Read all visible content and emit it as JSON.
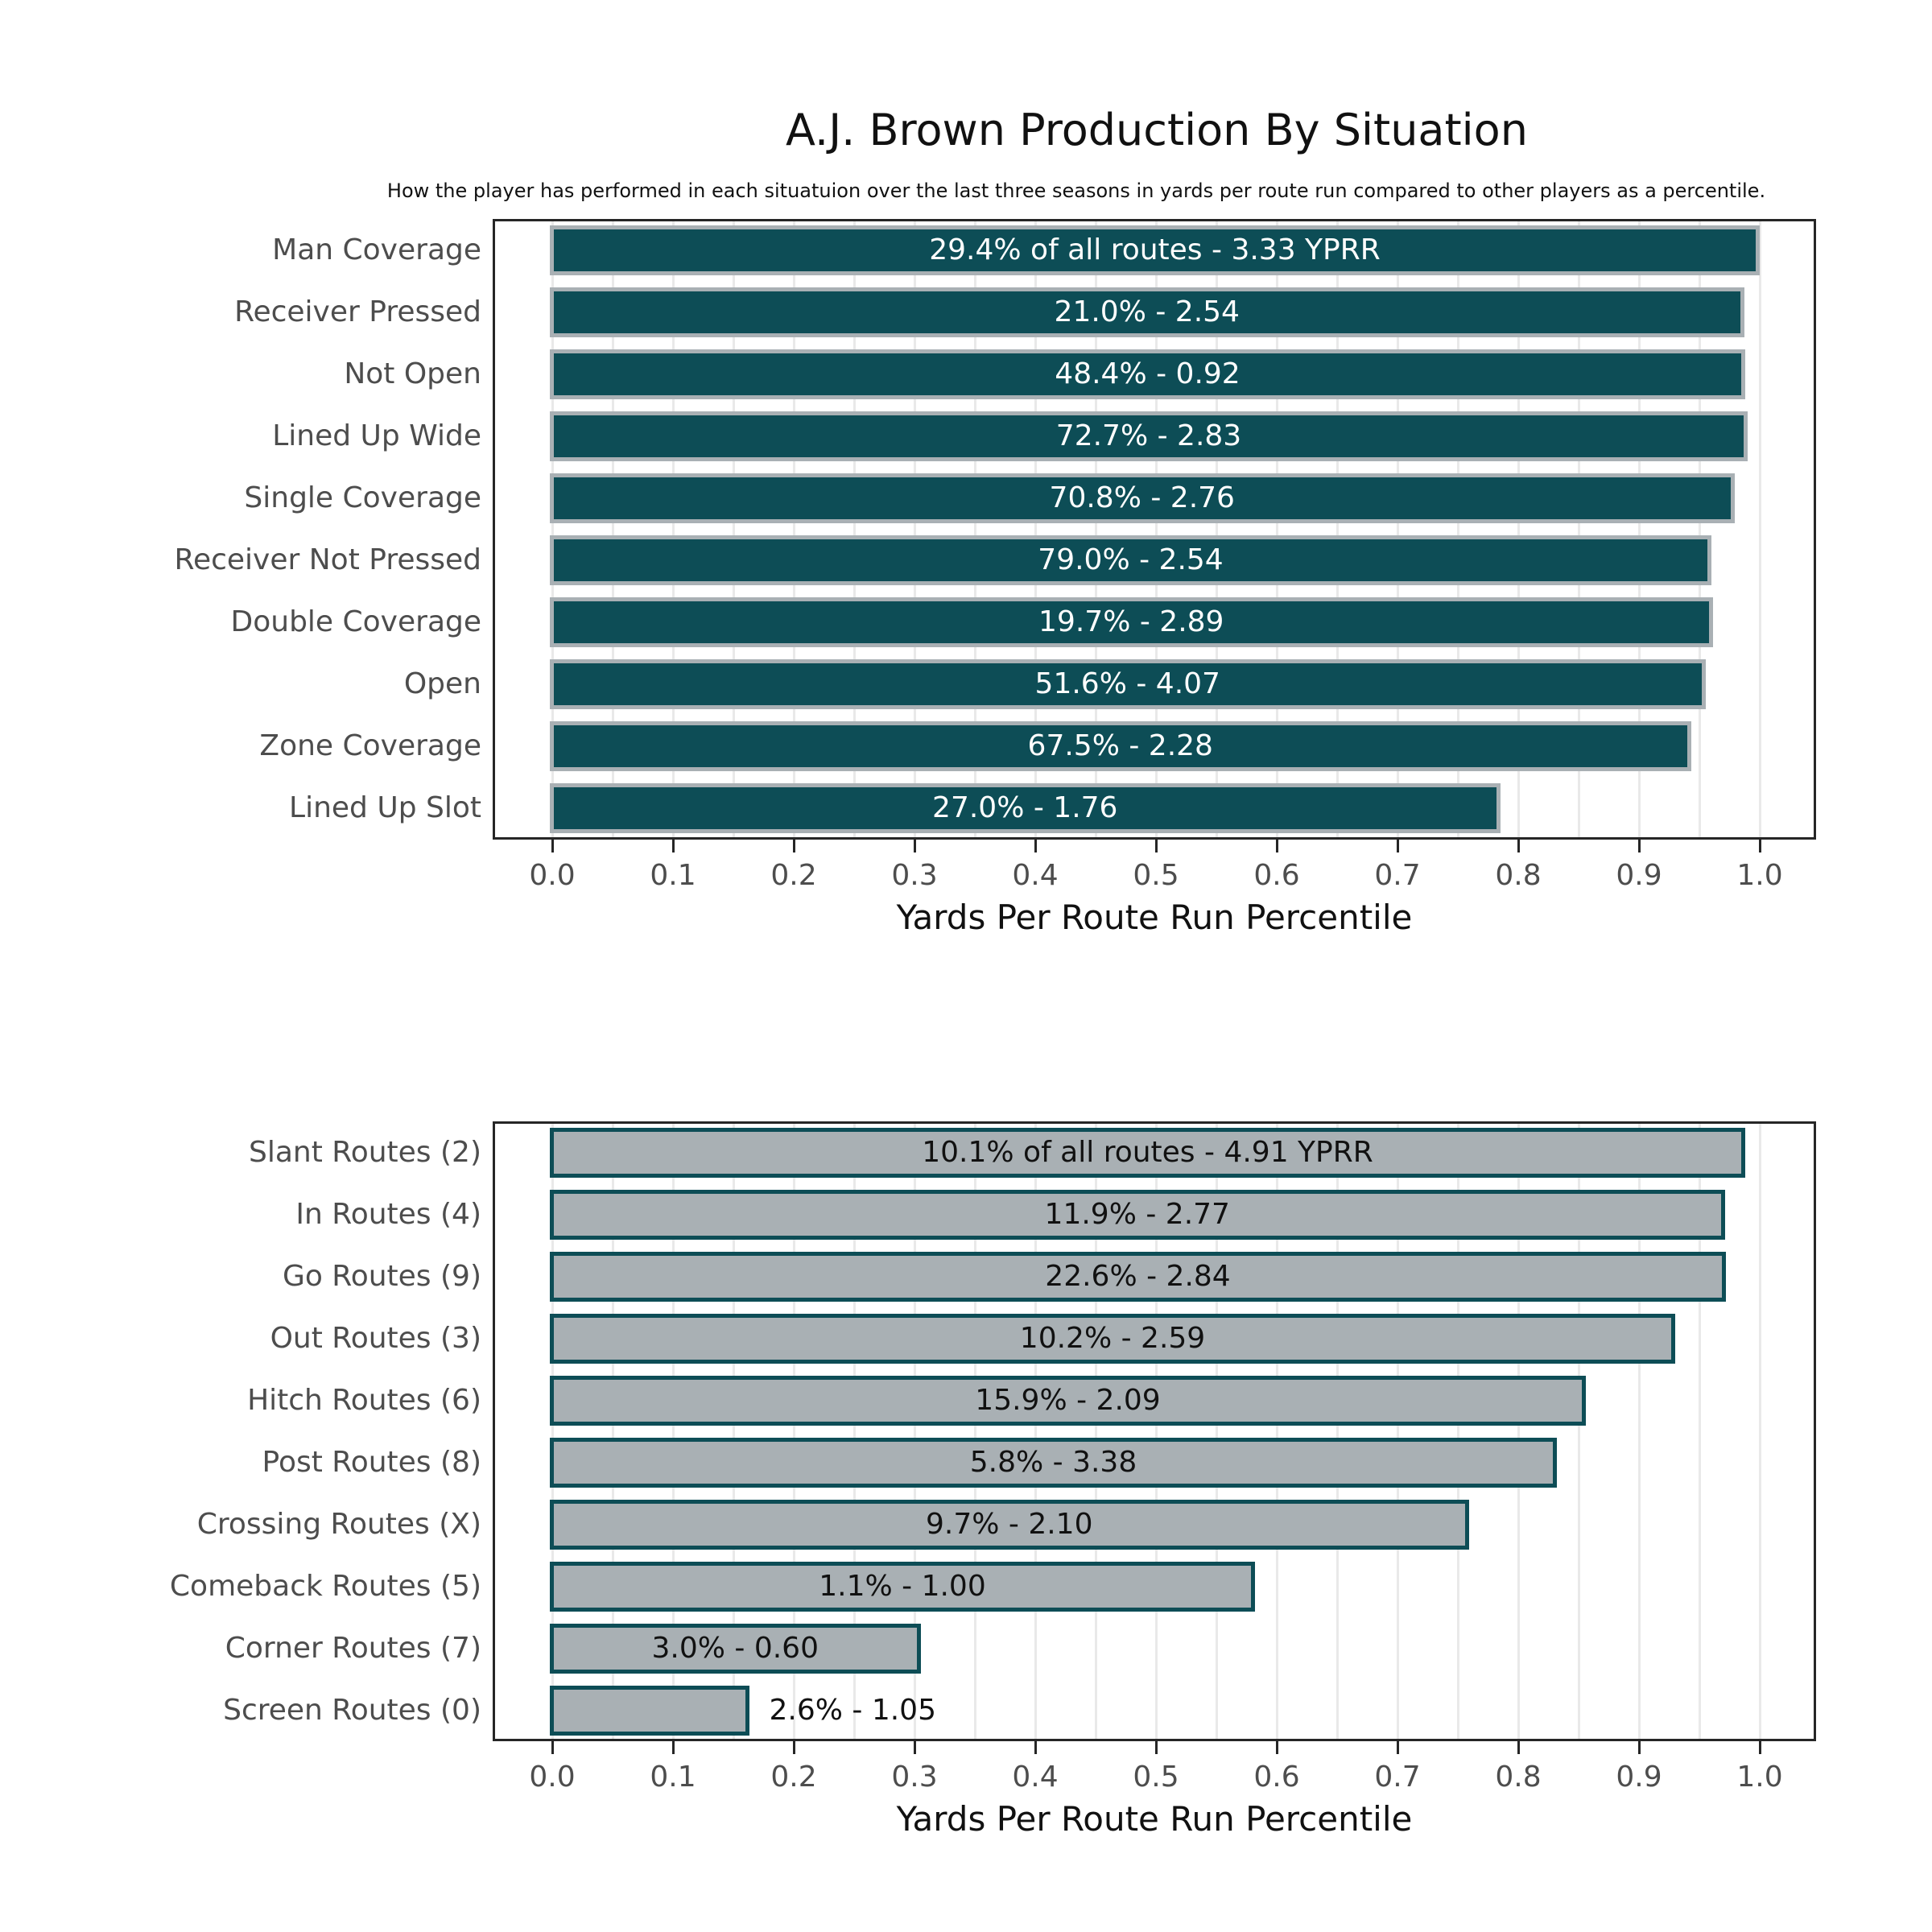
{
  "title": "A.J. Brown Production By Situation",
  "subtitle": "How the player has performed in each situatuion over the last three seasons in yards per route run compared to other players as a percentile.",
  "x_axis": {
    "label": "Yards Per Route Run Percentile",
    "tick_labels": [
      "0.0",
      "0.1",
      "0.2",
      "0.3",
      "0.4",
      "0.5",
      "0.6",
      "0.7",
      "0.8",
      "0.9",
      "1.0"
    ],
    "tick_values": [
      0.0,
      0.1,
      0.2,
      0.3,
      0.4,
      0.5,
      0.6,
      0.7,
      0.8,
      0.9,
      1.0
    ],
    "range": [
      -0.05,
      1.047
    ],
    "grid_step": 0.05,
    "grid_on": true
  },
  "colors": {
    "midnight_green": "#0d4d56",
    "silver": "#a9b0b4",
    "grid": "#e9e9e9",
    "axis": "#262626",
    "tick_text": "#4d4d4d",
    "category_text": "#4d4d4d",
    "bar_label_light": "#ffffff",
    "bar_label_dark": "#111111"
  },
  "chart_data": [
    {
      "type": "bar",
      "orientation": "horizontal",
      "name": "production-by-coverage-situation",
      "xlabel": "Yards Per Route Run Percentile",
      "xlim": [
        -0.05,
        1.047
      ],
      "legend": "none",
      "bar_style": {
        "fill": "midnight_green",
        "edge": "silver",
        "label_color": "bar_label_light"
      },
      "items": [
        {
          "category": "Man Coverage",
          "share_pct": 29.4,
          "yprr": 3.33,
          "percentile": 0.998,
          "label": "29.4% of all routes - 3.33 YPRR",
          "label_outside": false
        },
        {
          "category": "Receiver Pressed",
          "share_pct": 21.0,
          "yprr": 2.54,
          "percentile": 0.985,
          "label": "21.0% - 2.54",
          "label_outside": false
        },
        {
          "category": "Not Open",
          "share_pct": 48.4,
          "yprr": 0.92,
          "percentile": 0.986,
          "label": "48.4% - 0.92",
          "label_outside": false
        },
        {
          "category": "Lined Up Wide",
          "share_pct": 72.7,
          "yprr": 2.83,
          "percentile": 0.988,
          "label": "72.7% - 2.83",
          "label_outside": false
        },
        {
          "category": "Single Coverage",
          "share_pct": 70.8,
          "yprr": 2.76,
          "percentile": 0.977,
          "label": "70.8% - 2.76",
          "label_outside": false
        },
        {
          "category": "Receiver Not Pressed",
          "share_pct": 79.0,
          "yprr": 2.54,
          "percentile": 0.958,
          "label": "79.0% - 2.54",
          "label_outside": false
        },
        {
          "category": "Double Coverage",
          "share_pct": 19.7,
          "yprr": 2.89,
          "percentile": 0.959,
          "label": "19.7% - 2.89",
          "label_outside": false
        },
        {
          "category": "Open",
          "share_pct": 51.6,
          "yprr": 4.07,
          "percentile": 0.953,
          "label": "51.6% - 4.07",
          "label_outside": false
        },
        {
          "category": "Zone Coverage",
          "share_pct": 67.5,
          "yprr": 2.28,
          "percentile": 0.941,
          "label": "67.5% - 2.28",
          "label_outside": false
        },
        {
          "category": "Lined Up Slot",
          "share_pct": 27.0,
          "yprr": 1.76,
          "percentile": 0.783,
          "label": "27.0% - 1.76",
          "label_outside": false
        }
      ]
    },
    {
      "type": "bar",
      "orientation": "horizontal",
      "name": "production-by-route-type",
      "xlabel": "Yards Per Route Run Percentile",
      "xlim": [
        -0.05,
        1.047
      ],
      "legend": "none",
      "bar_style": {
        "fill": "silver",
        "edge": "midnight_green",
        "label_color": "bar_label_dark"
      },
      "items": [
        {
          "category": "Slant Routes (2)",
          "share_pct": 10.1,
          "yprr": 4.91,
          "percentile": 0.986,
          "label": "10.1% of all routes - 4.91 YPRR",
          "label_outside": false
        },
        {
          "category": "In Routes (4)",
          "share_pct": 11.9,
          "yprr": 2.77,
          "percentile": 0.969,
          "label": "11.9% - 2.77",
          "label_outside": false
        },
        {
          "category": "Go Routes (9)",
          "share_pct": 22.6,
          "yprr": 2.84,
          "percentile": 0.97,
          "label": "22.6% - 2.84",
          "label_outside": false
        },
        {
          "category": "Out Routes (3)",
          "share_pct": 10.2,
          "yprr": 2.59,
          "percentile": 0.928,
          "label": "10.2% - 2.59",
          "label_outside": false
        },
        {
          "category": "Hitch Routes (6)",
          "share_pct": 15.9,
          "yprr": 2.09,
          "percentile": 0.854,
          "label": "15.9% - 2.09",
          "label_outside": false
        },
        {
          "category": "Post Routes (8)",
          "share_pct": 5.8,
          "yprr": 3.38,
          "percentile": 0.83,
          "label": "5.8% - 3.38",
          "label_outside": false
        },
        {
          "category": "Crossing Routes (X)",
          "share_pct": 9.7,
          "yprr": 2.1,
          "percentile": 0.757,
          "label": "9.7% - 2.10",
          "label_outside": false
        },
        {
          "category": "Comeback Routes (5)",
          "share_pct": 1.1,
          "yprr": 1.0,
          "percentile": 0.58,
          "label": "1.1% - 1.00",
          "label_outside": false
        },
        {
          "category": "Corner Routes (7)",
          "share_pct": 3.0,
          "yprr": 0.6,
          "percentile": 0.303,
          "label": "3.0% - 0.60",
          "label_outside": false
        },
        {
          "category": "Screen Routes (0)",
          "share_pct": 2.6,
          "yprr": 1.05,
          "percentile": 0.161,
          "label": "2.6% - 1.05",
          "label_outside": true
        }
      ]
    }
  ]
}
